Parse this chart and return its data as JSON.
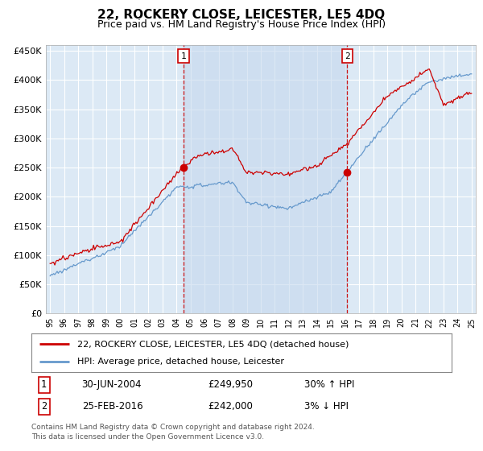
{
  "title": "22, ROCKERY CLOSE, LEICESTER, LE5 4DQ",
  "subtitle": "Price paid vs. HM Land Registry's House Price Index (HPI)",
  "background_color": "#ffffff",
  "plot_bg_color": "#dce9f5",
  "grid_color": "#ffffff",
  "ylabel_ticks": [
    "£0",
    "£50K",
    "£100K",
    "£150K",
    "£200K",
    "£250K",
    "£300K",
    "£350K",
    "£400K",
    "£450K"
  ],
  "ytick_values": [
    0,
    50000,
    100000,
    150000,
    200000,
    250000,
    300000,
    350000,
    400000,
    450000
  ],
  "ylim": [
    0,
    460000
  ],
  "xlim_start": 1994.7,
  "xlim_end": 2025.3,
  "sale1_date": 2004.5,
  "sale1_price": 249950,
  "sale1_label": "1",
  "sale2_date": 2016.15,
  "sale2_price": 242000,
  "sale2_label": "2",
  "legend_line1": "22, ROCKERY CLOSE, LEICESTER, LE5 4DQ (detached house)",
  "legend_line2": "HPI: Average price, detached house, Leicester",
  "footer1": "Contains HM Land Registry data © Crown copyright and database right 2024.",
  "footer2": "This data is licensed under the Open Government Licence v3.0.",
  "table_row1": [
    "1",
    "30-JUN-2004",
    "£249,950",
    "30% ↑ HPI"
  ],
  "table_row2": [
    "2",
    "25-FEB-2016",
    "£242,000",
    "3% ↓ HPI"
  ],
  "red_color": "#cc0000",
  "blue_color": "#6699cc",
  "fill_color": "#c5d8ed",
  "xtick_years": [
    1995,
    1996,
    1997,
    1998,
    1999,
    2000,
    2001,
    2002,
    2003,
    2004,
    2005,
    2006,
    2007,
    2008,
    2009,
    2010,
    2011,
    2012,
    2013,
    2014,
    2015,
    2016,
    2017,
    2018,
    2019,
    2020,
    2021,
    2022,
    2023,
    2024,
    2025
  ]
}
